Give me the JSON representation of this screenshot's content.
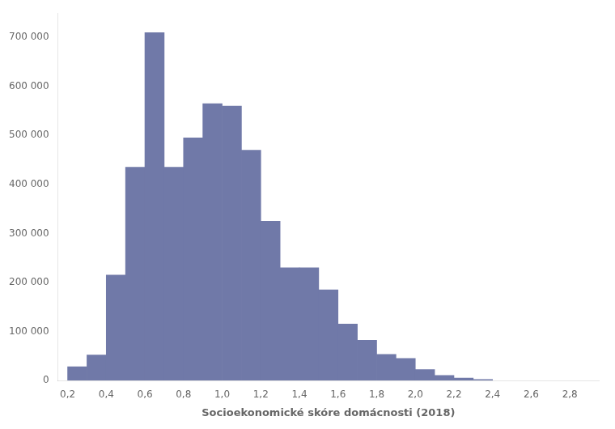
{
  "chart_data": {
    "type": "histogram",
    "bins": [
      0.2,
      0.3,
      0.4,
      0.5,
      0.6,
      0.7,
      0.8,
      0.9,
      1.0,
      1.1,
      1.2,
      1.3,
      1.4,
      1.5,
      1.6,
      1.7,
      1.8,
      1.9,
      2.0,
      2.1,
      2.2,
      2.3,
      2.4
    ],
    "values": [
      28000,
      52000,
      215000,
      435000,
      710000,
      435000,
      495000,
      565000,
      560000,
      470000,
      325000,
      230000,
      230000,
      185000,
      115000,
      82000,
      53000,
      45000,
      22000,
      10000,
      5000,
      2000
    ],
    "color": "#7079a8",
    "xlabel": "Socioekonomické skóre domácnosti (2018)",
    "xlim": [
      0.15,
      2.95
    ],
    "xticks": [
      {
        "value": 0.2,
        "label": "0,2"
      },
      {
        "value": 0.4,
        "label": "0,4"
      },
      {
        "value": 0.6,
        "label": "0,6"
      },
      {
        "value": 0.8,
        "label": "0,8"
      },
      {
        "value": 1.0,
        "label": "1,0"
      },
      {
        "value": 1.2,
        "label": "1,2"
      },
      {
        "value": 1.4,
        "label": "1,4"
      },
      {
        "value": 1.6,
        "label": "1,6"
      },
      {
        "value": 1.8,
        "label": "1,8"
      },
      {
        "value": 2.0,
        "label": "2,0"
      },
      {
        "value": 2.2,
        "label": "2,2"
      },
      {
        "value": 2.4,
        "label": "2,4"
      },
      {
        "value": 2.6,
        "label": "2,6"
      },
      {
        "value": 2.8,
        "label": "2,8"
      }
    ],
    "ylim": [
      0,
      750000
    ],
    "yticks": [
      0,
      {
        "value": 100000,
        "label": "100 000"
      },
      {
        "value": 200000,
        "label": "200 000"
      },
      {
        "value": 300000,
        "label": "300 000"
      },
      {
        "value": 400000,
        "label": "400 000"
      },
      {
        "value": 500000,
        "label": "500 000"
      },
      {
        "value": 600000,
        "label": "600 000"
      },
      {
        "value": 700000,
        "label": "700 000"
      }
    ],
    "grid": false
  }
}
